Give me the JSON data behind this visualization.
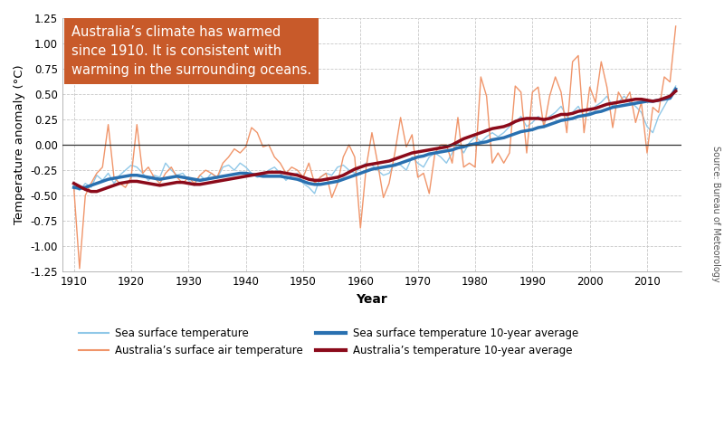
{
  "xlabel": "Year",
  "ylabel": "Temperature anomaly (°C)",
  "annotation_text": "Australia’s climate has warmed\nsince 1910. It is consistent with\nwarming in the surrounding oceans.",
  "annotation_bg": "#C85A2A",
  "annotation_text_color": "#ffffff",
  "source_text": "Source: Bureau of Meteorology",
  "ylim": [
    -1.25,
    1.25
  ],
  "xlim": [
    1908,
    2016
  ],
  "xticks": [
    1910,
    1920,
    1930,
    1940,
    1950,
    1960,
    1970,
    1980,
    1990,
    2000,
    2010
  ],
  "yticks": [
    -1.25,
    -1.0,
    -0.75,
    -0.5,
    -0.25,
    0.0,
    0.25,
    0.5,
    0.75,
    1.0,
    1.25
  ],
  "color_sst": "#90C8E8",
  "color_sst_avg": "#2970B0",
  "color_air": "#F0956A",
  "color_air_avg": "#8B0A1A",
  "legend_labels": [
    "Sea surface temperature",
    "Australia’s surface air temperature",
    "Sea surface temperature 10-year average",
    "Australia’s temperature 10-year average"
  ],
  "background_color": "#ffffff",
  "grid_color": "#c8c8c8",
  "years_sst": [
    1910,
    1911,
    1912,
    1913,
    1914,
    1915,
    1916,
    1917,
    1918,
    1919,
    1920,
    1921,
    1922,
    1923,
    1924,
    1925,
    1926,
    1927,
    1928,
    1929,
    1930,
    1931,
    1932,
    1933,
    1934,
    1935,
    1936,
    1937,
    1938,
    1939,
    1940,
    1941,
    1942,
    1943,
    1944,
    1945,
    1946,
    1947,
    1948,
    1949,
    1950,
    1951,
    1952,
    1953,
    1954,
    1955,
    1956,
    1957,
    1958,
    1959,
    1960,
    1961,
    1962,
    1963,
    1964,
    1965,
    1966,
    1967,
    1968,
    1969,
    1970,
    1971,
    1972,
    1973,
    1974,
    1975,
    1976,
    1977,
    1978,
    1979,
    1980,
    1981,
    1982,
    1983,
    1984,
    1985,
    1986,
    1987,
    1988,
    1989,
    1990,
    1991,
    1992,
    1993,
    1994,
    1995,
    1996,
    1997,
    1998,
    1999,
    2000,
    2001,
    2002,
    2003,
    2004,
    2005,
    2006,
    2007,
    2008,
    2009,
    2010,
    2011,
    2012,
    2013,
    2014,
    2015
  ],
  "sst": [
    -0.4,
    -0.45,
    -0.38,
    -0.42,
    -0.3,
    -0.35,
    -0.28,
    -0.38,
    -0.3,
    -0.25,
    -0.2,
    -0.22,
    -0.28,
    -0.35,
    -0.3,
    -0.32,
    -0.18,
    -0.25,
    -0.3,
    -0.28,
    -0.35,
    -0.4,
    -0.3,
    -0.35,
    -0.28,
    -0.33,
    -0.22,
    -0.2,
    -0.25,
    -0.18,
    -0.22,
    -0.28,
    -0.32,
    -0.3,
    -0.25,
    -0.22,
    -0.28,
    -0.35,
    -0.3,
    -0.28,
    -0.38,
    -0.42,
    -0.48,
    -0.32,
    -0.28,
    -0.3,
    -0.22,
    -0.2,
    -0.25,
    -0.28,
    -0.22,
    -0.18,
    -0.2,
    -0.25,
    -0.3,
    -0.28,
    -0.18,
    -0.2,
    -0.25,
    -0.12,
    -0.18,
    -0.22,
    -0.12,
    -0.08,
    -0.12,
    -0.18,
    -0.08,
    0.02,
    -0.08,
    0.02,
    0.08,
    0.03,
    0.08,
    0.12,
    0.08,
    0.12,
    0.18,
    0.22,
    0.28,
    0.18,
    0.22,
    0.28,
    0.22,
    0.28,
    0.32,
    0.38,
    0.28,
    0.32,
    0.38,
    0.28,
    0.32,
    0.38,
    0.42,
    0.48,
    0.38,
    0.42,
    0.48,
    0.42,
    0.38,
    0.32,
    0.18,
    0.12,
    0.28,
    0.38,
    0.48,
    0.58
  ],
  "sst_avg": [
    -0.42,
    -0.43,
    -0.42,
    -0.4,
    -0.38,
    -0.36,
    -0.34,
    -0.33,
    -0.32,
    -0.31,
    -0.3,
    -0.3,
    -0.31,
    -0.32,
    -0.33,
    -0.34,
    -0.33,
    -0.32,
    -0.31,
    -0.32,
    -0.33,
    -0.34,
    -0.35,
    -0.34,
    -0.33,
    -0.32,
    -0.31,
    -0.3,
    -0.29,
    -0.28,
    -0.28,
    -0.29,
    -0.3,
    -0.31,
    -0.31,
    -0.31,
    -0.31,
    -0.32,
    -0.33,
    -0.34,
    -0.36,
    -0.38,
    -0.39,
    -0.39,
    -0.38,
    -0.37,
    -0.36,
    -0.34,
    -0.32,
    -0.3,
    -0.28,
    -0.26,
    -0.24,
    -0.23,
    -0.22,
    -0.21,
    -0.2,
    -0.18,
    -0.16,
    -0.14,
    -0.12,
    -0.11,
    -0.09,
    -0.08,
    -0.07,
    -0.06,
    -0.05,
    -0.03,
    -0.02,
    0.0,
    0.01,
    0.02,
    0.03,
    0.05,
    0.06,
    0.07,
    0.09,
    0.11,
    0.13,
    0.14,
    0.15,
    0.17,
    0.18,
    0.2,
    0.22,
    0.24,
    0.25,
    0.26,
    0.28,
    0.29,
    0.3,
    0.32,
    0.33,
    0.35,
    0.37,
    0.38,
    0.39,
    0.4,
    0.41,
    0.42,
    0.43,
    0.43,
    0.44,
    0.45,
    0.46,
    0.55
  ],
  "years_air": [
    1910,
    1911,
    1912,
    1913,
    1914,
    1915,
    1916,
    1917,
    1918,
    1919,
    1920,
    1921,
    1922,
    1923,
    1924,
    1925,
    1926,
    1927,
    1928,
    1929,
    1930,
    1931,
    1932,
    1933,
    1934,
    1935,
    1936,
    1937,
    1938,
    1939,
    1940,
    1941,
    1942,
    1943,
    1944,
    1945,
    1946,
    1947,
    1948,
    1949,
    1950,
    1951,
    1952,
    1953,
    1954,
    1955,
    1956,
    1957,
    1958,
    1959,
    1960,
    1961,
    1962,
    1963,
    1964,
    1965,
    1966,
    1967,
    1968,
    1969,
    1970,
    1971,
    1972,
    1973,
    1974,
    1975,
    1976,
    1977,
    1978,
    1979,
    1980,
    1981,
    1982,
    1983,
    1984,
    1985,
    1986,
    1987,
    1988,
    1989,
    1990,
    1991,
    1992,
    1993,
    1994,
    1995,
    1996,
    1997,
    1998,
    1999,
    2000,
    2001,
    2002,
    2003,
    2004,
    2005,
    2006,
    2007,
    2008,
    2009,
    2010,
    2011,
    2012,
    2013,
    2014,
    2015
  ],
  "air": [
    -0.42,
    -1.22,
    -0.5,
    -0.38,
    -0.28,
    -0.22,
    0.2,
    -0.32,
    -0.38,
    -0.42,
    -0.32,
    0.2,
    -0.28,
    -0.22,
    -0.32,
    -0.38,
    -0.28,
    -0.22,
    -0.32,
    -0.38,
    -0.32,
    -0.38,
    -0.3,
    -0.25,
    -0.28,
    -0.32,
    -0.18,
    -0.12,
    -0.04,
    -0.08,
    -0.02,
    0.17,
    0.12,
    -0.02,
    0.0,
    -0.12,
    -0.18,
    -0.28,
    -0.22,
    -0.25,
    -0.32,
    -0.18,
    -0.38,
    -0.32,
    -0.28,
    -0.52,
    -0.38,
    -0.12,
    0.0,
    -0.12,
    -0.82,
    -0.22,
    0.12,
    -0.18,
    -0.52,
    -0.38,
    -0.08,
    0.27,
    -0.02,
    0.1,
    -0.32,
    -0.28,
    -0.48,
    -0.08,
    0.0,
    0.0,
    -0.18,
    0.27,
    -0.22,
    -0.18,
    -0.22,
    0.67,
    0.48,
    -0.18,
    -0.08,
    -0.18,
    -0.08,
    0.58,
    0.52,
    -0.08,
    0.52,
    0.57,
    0.17,
    0.48,
    0.67,
    0.52,
    0.12,
    0.82,
    0.88,
    0.12,
    0.57,
    0.42,
    0.82,
    0.57,
    0.17,
    0.52,
    0.42,
    0.52,
    0.22,
    0.42,
    -0.08,
    0.37,
    0.32,
    0.67,
    0.62,
    1.17
  ],
  "air_avg": [
    -0.38,
    -0.41,
    -0.44,
    -0.46,
    -0.46,
    -0.44,
    -0.42,
    -0.4,
    -0.38,
    -0.37,
    -0.36,
    -0.36,
    -0.37,
    -0.38,
    -0.39,
    -0.4,
    -0.39,
    -0.38,
    -0.37,
    -0.37,
    -0.38,
    -0.39,
    -0.39,
    -0.38,
    -0.37,
    -0.36,
    -0.35,
    -0.34,
    -0.33,
    -0.32,
    -0.31,
    -0.3,
    -0.29,
    -0.28,
    -0.27,
    -0.27,
    -0.27,
    -0.28,
    -0.29,
    -0.3,
    -0.32,
    -0.34,
    -0.35,
    -0.35,
    -0.34,
    -0.33,
    -0.32,
    -0.3,
    -0.27,
    -0.24,
    -0.22,
    -0.2,
    -0.19,
    -0.18,
    -0.17,
    -0.16,
    -0.14,
    -0.12,
    -0.1,
    -0.08,
    -0.07,
    -0.06,
    -0.05,
    -0.04,
    -0.03,
    -0.02,
    0.0,
    0.03,
    0.06,
    0.08,
    0.1,
    0.12,
    0.14,
    0.16,
    0.17,
    0.18,
    0.2,
    0.23,
    0.25,
    0.26,
    0.26,
    0.26,
    0.25,
    0.26,
    0.28,
    0.3,
    0.3,
    0.31,
    0.33,
    0.34,
    0.35,
    0.36,
    0.38,
    0.4,
    0.41,
    0.42,
    0.43,
    0.44,
    0.45,
    0.45,
    0.44,
    0.43,
    0.44,
    0.46,
    0.48,
    0.53
  ]
}
